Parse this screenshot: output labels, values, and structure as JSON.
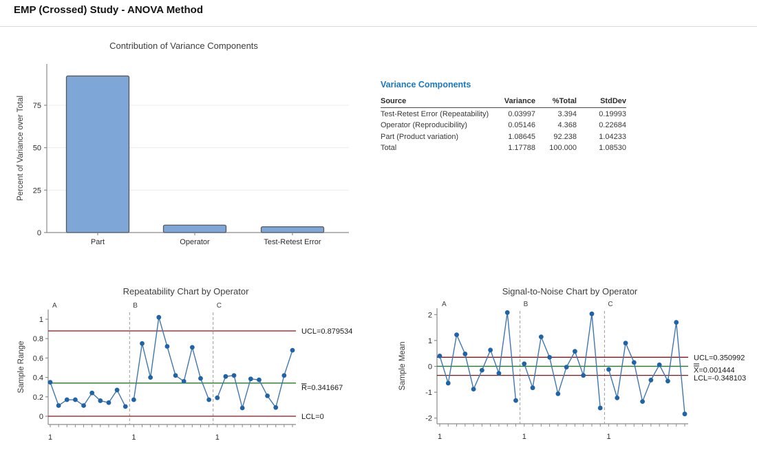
{
  "page": {
    "title": "EMP (Crossed) Study - ANOVA Method"
  },
  "colors": {
    "heading_blue": "#1878c2",
    "bar_fill": "#7ea7d8",
    "bar_border": "#54585c",
    "line_blue": "#3f76ae",
    "marker_blue": "#1f63a8",
    "limit_maroon": "#801518",
    "center_green": "#1f7a24",
    "axis_gray": "#8a8a8a",
    "grid_gray": "#ececec",
    "dash_gray": "#9a9a9a",
    "title_gray": "#3d3d3d",
    "text_dark": "#2b2b2b"
  },
  "variance_components": {
    "heading": "Variance Components",
    "columns": [
      "Source",
      "Variance",
      "%Total",
      "StdDev"
    ],
    "rows": [
      {
        "source": "Test-Retest Error (Repeatability)",
        "variance": "0.03997",
        "pct_total": "3.394",
        "stddev": "0.19993"
      },
      {
        "source": "Operator (Reproducibility)",
        "variance": "0.05146",
        "pct_total": "4.368",
        "stddev": "0.22684"
      },
      {
        "source": "Part (Product variation)",
        "variance": "1.08645",
        "pct_total": "92.238",
        "stddev": "1.04233"
      },
      {
        "source": "Total",
        "variance": "1.17788",
        "pct_total": "100.000",
        "stddev": "1.08530"
      }
    ]
  },
  "chart_data": [
    {
      "id": "contribution",
      "type": "bar",
      "title": "Contribution of Variance Components",
      "ylabel": "Percent of Variance over Total",
      "categories": [
        "Part",
        "Operator",
        "Test-Retest Error"
      ],
      "values": [
        92.238,
        4.368,
        3.394
      ],
      "yticks": [
        0,
        25,
        50,
        75
      ],
      "ylim": [
        0,
        100
      ],
      "grid": true,
      "legend": "none"
    },
    {
      "id": "repeatability",
      "type": "line",
      "title": "Repeatability Chart by Operator",
      "ylabel": "Sample Range",
      "groups": [
        "A",
        "B",
        "C"
      ],
      "group_x_label": "1",
      "yticks": [
        0,
        0.2,
        0.4,
        0.6,
        0.8,
        1
      ],
      "ylim": [
        -0.085,
        1.1
      ],
      "series": [
        {
          "name": "A",
          "values": [
            0.35,
            0.11,
            0.17,
            0.17,
            0.11,
            0.24,
            0.16,
            0.14,
            0.27,
            0.1
          ]
        },
        {
          "name": "B",
          "values": [
            0.17,
            0.75,
            0.4,
            1.02,
            0.72,
            0.42,
            0.36,
            0.71,
            0.39,
            0.17
          ]
        },
        {
          "name": "C",
          "values": [
            0.19,
            0.41,
            0.42,
            0.085,
            0.385,
            0.375,
            0.21,
            0.09,
            0.42,
            0.68
          ]
        }
      ],
      "ref_lines": [
        {
          "label": "UCL=0.879534",
          "value": 0.879534,
          "role": "ucl"
        },
        {
          "label": "R=0.341667",
          "value": 0.341667,
          "role": "center",
          "overbar": "single"
        },
        {
          "label": "LCL=0",
          "value": 0,
          "role": "lcl"
        }
      ]
    },
    {
      "id": "signal_to_noise",
      "type": "line",
      "title": "Signal-to-Noise Chart by Operator",
      "ylabel": "Sample Mean",
      "groups": [
        "A",
        "B",
        "C"
      ],
      "group_x_label": "1",
      "yticks": [
        -2,
        -1,
        0,
        1,
        2
      ],
      "ylim": [
        -2.25,
        2.25
      ],
      "series": [
        {
          "name": "A",
          "values": [
            0.4,
            -0.65,
            1.22,
            0.48,
            -0.88,
            -0.15,
            0.63,
            -0.27,
            2.08,
            -1.32
          ]
        },
        {
          "name": "B",
          "values": [
            0.1,
            -0.83,
            1.14,
            0.35,
            -1.06,
            -0.03,
            0.58,
            -0.35,
            2.03,
            -1.61
          ]
        },
        {
          "name": "C",
          "values": [
            -0.12,
            -1.22,
            0.9,
            0.15,
            -1.36,
            -0.53,
            0.06,
            -0.57,
            1.7,
            -1.84
          ]
        }
      ],
      "ref_lines": [
        {
          "label": "UCL=0.350992",
          "value": 0.350992,
          "role": "ucl"
        },
        {
          "label": "X=0.001444",
          "value": 0.001444,
          "role": "center",
          "overbar": "double"
        },
        {
          "label": "LCL=-0.348103",
          "value": -0.348103,
          "role": "lcl"
        }
      ]
    }
  ]
}
